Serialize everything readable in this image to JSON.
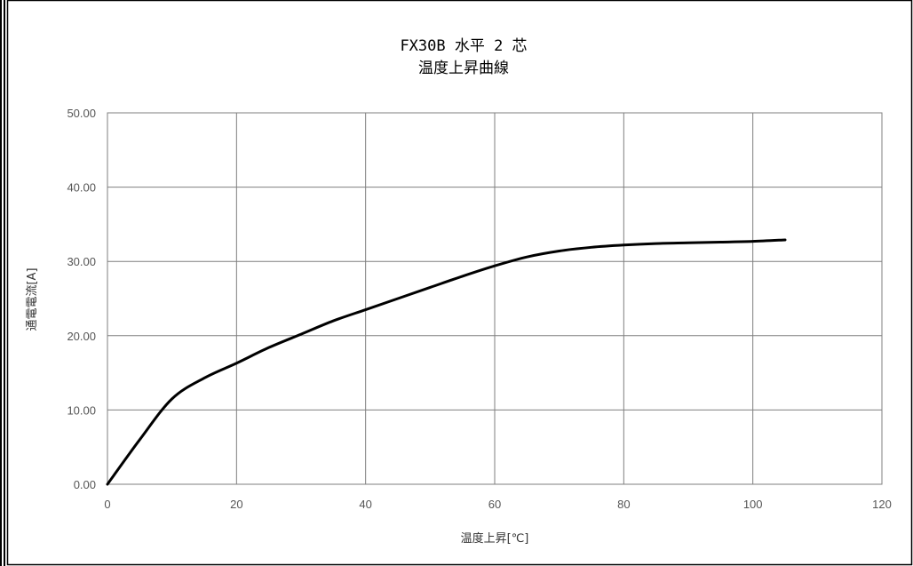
{
  "colors": {
    "border": "#000000",
    "grid": "#7f7f7f",
    "series": "#000000",
    "background": "#ffffff"
  },
  "chart_data": {
    "type": "line",
    "title": "FX30B 水平 2 芯",
    "subtitle": "温度上昇曲線",
    "xlabel": "温度上昇[℃]",
    "ylabel": "通電電流[A]",
    "xlim": [
      0,
      120
    ],
    "ylim": [
      0,
      50
    ],
    "x_ticks": [
      0,
      20,
      40,
      60,
      80,
      100,
      120
    ],
    "y_ticks": [
      0,
      10,
      20,
      30,
      40,
      50
    ],
    "x_tick_labels": [
      "0",
      "20",
      "40",
      "60",
      "80",
      "100",
      "120"
    ],
    "y_tick_labels": [
      "0.00",
      "10.00",
      "20.00",
      "30.00",
      "40.00",
      "50.00"
    ],
    "grid": true,
    "legend": "none",
    "series": [
      {
        "x": [
          0,
          5,
          10,
          15,
          20,
          25,
          30,
          35,
          40,
          45,
          50,
          55,
          60,
          65,
          70,
          75,
          80,
          85,
          90,
          95,
          100,
          105
        ],
        "y": [
          0,
          6,
          11.5,
          14.3,
          16.3,
          18.4,
          20.2,
          22.0,
          23.5,
          25.0,
          26.5,
          28.0,
          29.4,
          30.6,
          31.4,
          31.9,
          32.2,
          32.4,
          32.5,
          32.6,
          32.7,
          32.9
        ]
      }
    ]
  }
}
